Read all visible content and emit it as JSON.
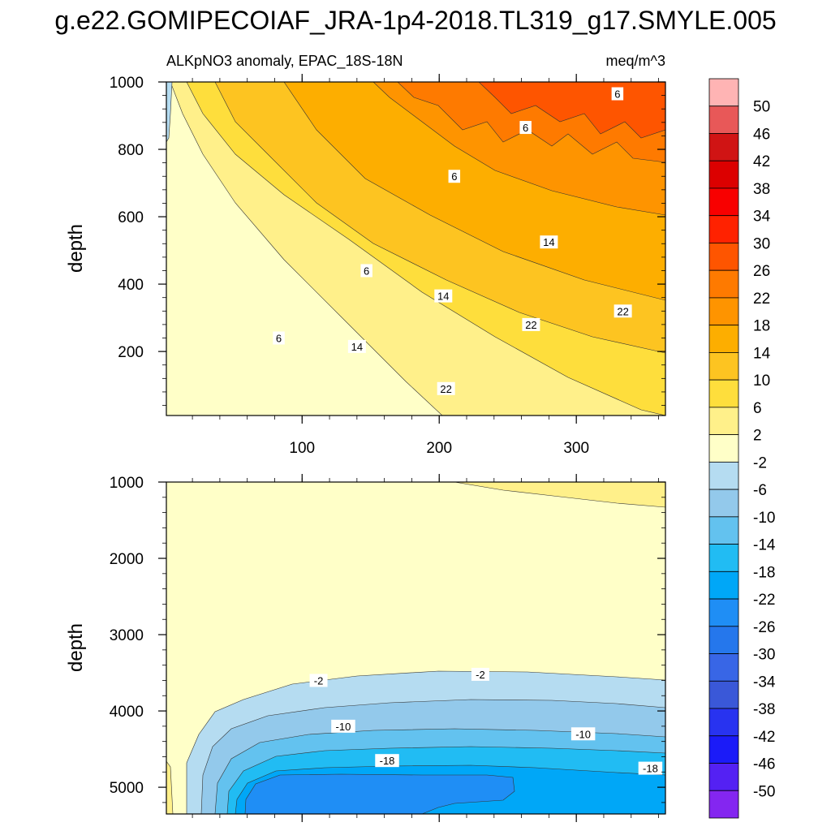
{
  "chart_data": {
    "type": "contour",
    "title": "g.e22.GOMIPECOIAF_JRA-1p4-2018.TL319_g17.SMYLE.005",
    "subtitle_left": "ALKpNO3 anomaly, EPAC_18S-18N",
    "subtitle_right": "meq/m^3",
    "panels": [
      {
        "name": "upper",
        "ylabel": "depth",
        "xlim": [
          1,
          365
        ],
        "ylim": [
          1000,
          10
        ],
        "yticks": [
          200,
          400,
          600,
          800,
          1000
        ],
        "ytick_labels": [
          "200",
          "400",
          "600",
          "800",
          "1000"
        ],
        "xticks": [
          100,
          200,
          300
        ],
        "xtick_labels": [
          "100",
          "200",
          "300"
        ],
        "contour_labels": [
          {
            "text": "22",
            "x": 205,
            "y": 90
          },
          {
            "text": "14",
            "x": 140,
            "y": 215
          },
          {
            "text": "6",
            "x": 83,
            "y": 240
          },
          {
            "text": "22",
            "x": 267,
            "y": 280
          },
          {
            "text": "22",
            "x": 334,
            "y": 320
          },
          {
            "text": "14",
            "x": 203,
            "y": 365
          },
          {
            "text": "6",
            "x": 147,
            "y": 440
          },
          {
            "text": "14",
            "x": 280,
            "y": 525
          },
          {
            "text": "6",
            "x": 211,
            "y": 720
          },
          {
            "text": "6",
            "x": 263,
            "y": 865
          },
          {
            "text": "6",
            "x": 330,
            "y": 965
          }
        ]
      },
      {
        "name": "lower",
        "ylabel": "depth",
        "xlim": [
          1,
          365
        ],
        "ylim": [
          1000,
          5350
        ],
        "yticks": [
          1000,
          2000,
          3000,
          4000,
          5000
        ],
        "ytick_labels": [
          "1000",
          "2000",
          "3000",
          "4000",
          "5000"
        ],
        "xticks": [
          100,
          200,
          300
        ],
        "xtick_labels": [],
        "contour_labels": [
          {
            "text": "-2",
            "x": 112,
            "y": 3600
          },
          {
            "text": "-2",
            "x": 230,
            "y": 3520
          },
          {
            "text": "-10",
            "x": 130,
            "y": 4200
          },
          {
            "text": "-10",
            "x": 305,
            "y": 4300
          },
          {
            "text": "-18",
            "x": 162,
            "y": 4650
          },
          {
            "text": "-18",
            "x": 354,
            "y": 4750
          }
        ]
      }
    ],
    "colorbar": {
      "levels": [
        "50",
        "46",
        "42",
        "38",
        "34",
        "30",
        "26",
        "22",
        "18",
        "14",
        "10",
        "6",
        "2",
        "-2",
        "-6",
        "-10",
        "-14",
        "-18",
        "-22",
        "-26",
        "-30",
        "-34",
        "-38",
        "-42",
        "-46",
        "-50"
      ],
      "colors": [
        "#ffb4b4",
        "#e85858",
        "#d01414",
        "#dc0000",
        "#f80000",
        "#ff2200",
        "#fe5500",
        "#fe7a00",
        "#fe9400",
        "#fdae00",
        "#fdc421",
        "#fede3c",
        "#fff08a",
        "#ffffc8",
        "#b5dcf1",
        "#93c9eb",
        "#63c2ef",
        "#21bcf3",
        "#00a7f7",
        "#1f8ef5",
        "#2577ec",
        "#3866e6",
        "#3a58d8",
        "#2833f0",
        "#1b1bf8",
        "#5421f3",
        "#8426f0"
      ]
    }
  }
}
